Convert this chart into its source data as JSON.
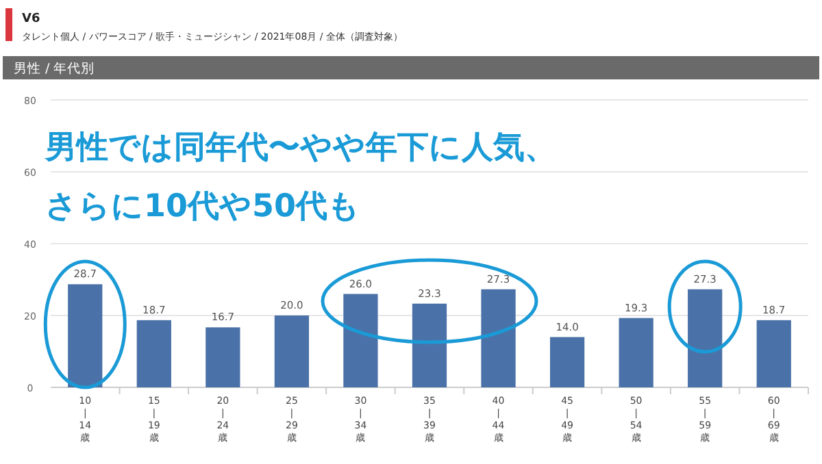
{
  "chart_data": {
    "type": "bar",
    "title": "V6",
    "subtitle": "タレント個人 / パワースコア / 歌手・ミュージシャン / 2021年08月 / 全体（調査対象）",
    "annotations": [
      "男性 / 年代別",
      "男性では同年代〜やや年下に人気、",
      "さらに10代や50代も"
    ],
    "categories": [
      "10\n|\n14\n歳",
      "15\n|\n19\n歳",
      "20\n|\n24\n歳",
      "25\n|\n29\n歳",
      "30\n|\n34\n歳",
      "35\n|\n39\n歳",
      "40\n|\n44\n歳",
      "45\n|\n49\n歳",
      "50\n|\n54\n歳",
      "55\n|\n59\n歳",
      "60\n|\n69\n歳"
    ],
    "values": [
      28.7,
      18.7,
      16.7,
      20.0,
      26.0,
      23.3,
      27.3,
      14.0,
      19.3,
      27.3,
      18.7
    ],
    "value_labels": [
      "28.7",
      "18.7",
      "16.7",
      "20.0",
      "26.0",
      "23.3",
      "27.3",
      "14.0",
      "19.3",
      "27.3",
      "18.7"
    ],
    "color": "#4a72a8",
    "ylim": [
      0,
      80
    ],
    "yticks": [
      0,
      20,
      40,
      60,
      80
    ],
    "grid": "y"
  }
}
